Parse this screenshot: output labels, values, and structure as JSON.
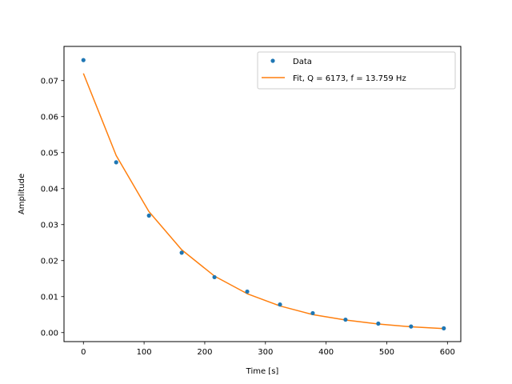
{
  "chart_data": {
    "type": "scatter",
    "title": "",
    "xlabel": "Time [s]",
    "ylabel": "Amplitude",
    "xlim": [
      -32,
      622
    ],
    "ylim": [
      -0.0025,
      0.0795
    ],
    "xticks": [
      0,
      100,
      200,
      300,
      400,
      500,
      600
    ],
    "yticks": [
      0.0,
      0.01,
      0.02,
      0.03,
      0.04,
      0.05,
      0.06,
      0.07
    ],
    "xtick_labels": [
      "0",
      "100",
      "200",
      "300",
      "400",
      "500",
      "600"
    ],
    "ytick_labels": [
      "0.00",
      "0.01",
      "0.02",
      "0.03",
      "0.04",
      "0.05",
      "0.06",
      "0.07"
    ],
    "grid": false,
    "legend_position": "top-right",
    "series": [
      {
        "name": "Data",
        "kind": "points",
        "color": "#1f77b4",
        "x": [
          0,
          54,
          108,
          162,
          216,
          270,
          324,
          378,
          432,
          486,
          540,
          594
        ],
        "y": [
          0.0757,
          0.0473,
          0.0325,
          0.0222,
          0.0154,
          0.0114,
          0.0078,
          0.0054,
          0.0036,
          0.0025,
          0.0017,
          0.0012
        ]
      },
      {
        "name": "Fit, Q = 6173, f = 13.759 Hz",
        "kind": "line",
        "color": "#ff7f0e",
        "x": [
          0,
          54,
          108,
          162,
          216,
          270,
          324,
          378,
          432,
          486,
          540,
          594
        ],
        "y": [
          0.072,
          0.0492,
          0.0336,
          0.023,
          0.0157,
          0.0108,
          0.0074,
          0.005,
          0.0035,
          0.0024,
          0.0016,
          0.0011
        ]
      }
    ]
  }
}
